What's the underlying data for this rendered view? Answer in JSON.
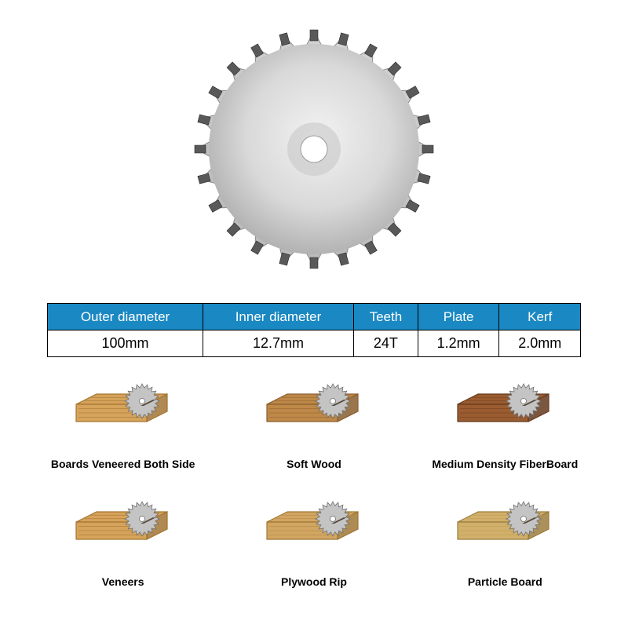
{
  "specs": {
    "columns": [
      "Outer diameter",
      "Inner diameter",
      "Teeth",
      "Plate",
      "Kerf"
    ],
    "values": [
      "100mm",
      "12.7mm",
      "24T",
      "1.2mm",
      "2.0mm"
    ],
    "header_bg": "#1a88c2",
    "header_text_color": "#ffffff",
    "cell_bg": "#ffffff",
    "cell_text_color": "#000000",
    "border_color": "#000000"
  },
  "blade": {
    "teeth": 24,
    "body_color_center": "#f2f2f2",
    "body_color_edge": "#a8a8a8",
    "tip_fill": "#595959",
    "tip_stroke": "#2a2a2a",
    "hub_shade": "#c8c8c8",
    "inner_hole": "#ffffff"
  },
  "materials": [
    {
      "label": "Boards Veneered Both Side",
      "wood_fill": "#d6a35a",
      "wood_stroke": "#a37434",
      "wood_grain": "#b98946"
    },
    {
      "label": "Soft Wood",
      "wood_fill": "#be8848",
      "wood_stroke": "#8a5e2e",
      "wood_grain": "#a5733a"
    },
    {
      "label": "Medium Density FiberBoard",
      "wood_fill": "#9a5c30",
      "wood_stroke": "#653a1e",
      "wood_grain": "#844d27"
    },
    {
      "label": "Veneers",
      "wood_fill": "#d6a35a",
      "wood_stroke": "#a37434",
      "wood_grain": "#b98946"
    },
    {
      "label": "Plywood Rip",
      "wood_fill": "#d1a662",
      "wood_stroke": "#a07735",
      "wood_grain": "#c09350"
    },
    {
      "label": "Particle Board",
      "wood_fill": "#d0b06a",
      "wood_stroke": "#9c7c3c",
      "wood_grain": "#c7a55c"
    }
  ],
  "style": {
    "background": "#ffffff",
    "label_font_size": 14,
    "label_font_weight": "bold"
  }
}
